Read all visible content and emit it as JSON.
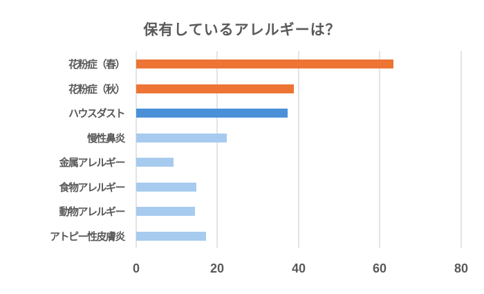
{
  "chart_data": {
    "type": "bar",
    "orientation": "horizontal",
    "title": "保有しているアレルギーは？",
    "xlabel": "",
    "ylabel": "",
    "xlim": [
      0,
      80
    ],
    "xticks": [
      "0",
      "20",
      "40",
      "60",
      "80"
    ],
    "grid": true,
    "legend": null,
    "categories": [
      "花粉症（春）",
      "花粉症（秋）",
      "ハウスダスト",
      "慢性鼻炎",
      "金属アレルギー",
      "食物アレルギー",
      "動物アレルギー",
      "アトピー性皮膚炎"
    ],
    "values": [
      63.4,
      38.8,
      37.3,
      22.3,
      9.2,
      14.8,
      14.5,
      17.2
    ],
    "colors": [
      "#ed7434",
      "#ed7434",
      "#4a90d9",
      "#a7cbee",
      "#a7cbee",
      "#a7cbee",
      "#a7cbee",
      "#a7cbee"
    ]
  },
  "labels": {
    "title": "保有しているアレルギーは？",
    "y": [
      "花粉症（春）",
      "花粉症（秋）",
      "ハウスダスト",
      "慢性鼻炎",
      "金属アレルギー",
      "食物アレルギー",
      "動物アレルギー",
      "アトピー性皮膚炎"
    ],
    "x": [
      "0",
      "20",
      "40",
      "60",
      "80"
    ]
  }
}
